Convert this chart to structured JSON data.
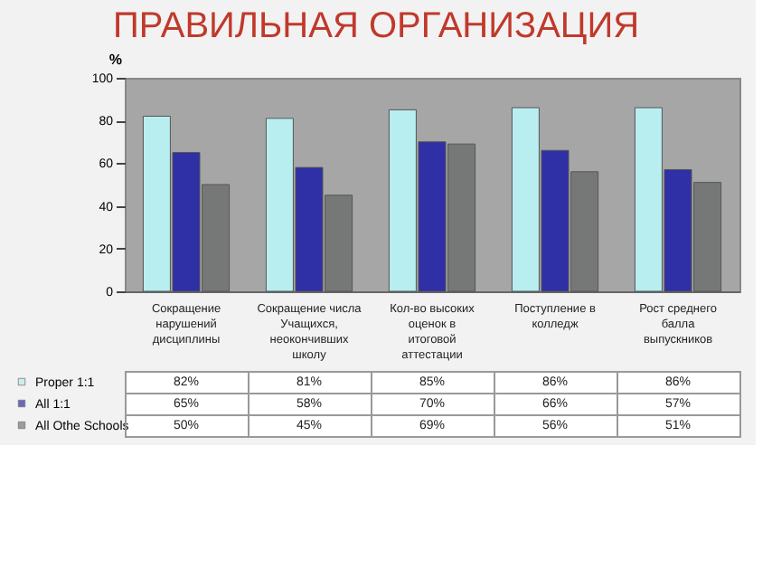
{
  "chart_data": {
    "type": "bar",
    "title": "ПРАВИЛЬНАЯ ОРГАНИЗАЦИЯ",
    "ylabel": "%",
    "categories": [
      "Сокращение нарушений дисциплины",
      "Сокращение числа Учащихся, неокончивших школу",
      "Кол-во высоких оценок в итоговой аттестации",
      "Поступление в колледж",
      "Рост среднего балла выпускников"
    ],
    "series": [
      {
        "name": "Proper 1:1",
        "color": "#b9eef0",
        "values": [
          82,
          81,
          85,
          86,
          86
        ],
        "value_labels": [
          "82%",
          "81%",
          "85%",
          "86%",
          "86%"
        ]
      },
      {
        "name": "All 1:1",
        "color": "#2f2fa6",
        "values": [
          65,
          58,
          70,
          66,
          57
        ],
        "value_labels": [
          "65%",
          "58%",
          "70%",
          "66%",
          "57%"
        ]
      },
      {
        "name": "All Othe Schools",
        "color": "#767878",
        "values": [
          50,
          45,
          69,
          56,
          51
        ],
        "value_labels": [
          "50%",
          "45%",
          "69%",
          "56%",
          "51%"
        ]
      }
    ],
    "ylim": [
      0,
      100
    ],
    "yticks": [
      0,
      20,
      40,
      60,
      80,
      100
    ],
    "legend": "bottom"
  }
}
